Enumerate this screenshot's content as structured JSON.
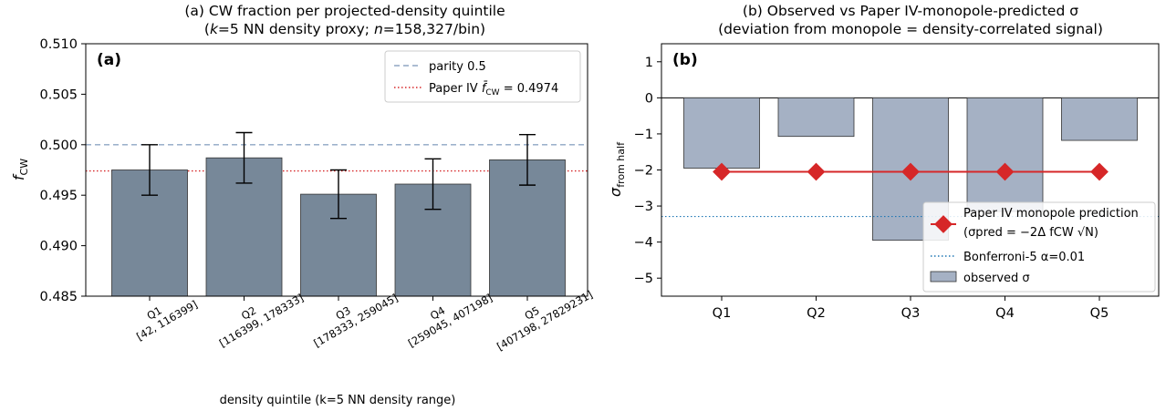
{
  "chart_data": [
    {
      "type": "bar",
      "panel_label": "(a)",
      "title_line1": "(a) CW fraction per projected-density quintile",
      "title_line2_parts": [
        "(",
        "k",
        "=5 NN density proxy; ",
        "n",
        "=158,327/bin)"
      ],
      "xlabel": "density quintile (k=5 NN density range)",
      "ylabel": "f",
      "ylabel_sub": "CW",
      "categories": [
        "Q1",
        "Q2",
        "Q3",
        "Q4",
        "Q5"
      ],
      "category_ranges": [
        "[42, 116399]",
        "[116399, 178333]",
        "[178333, 259045]",
        "[259045, 407198]",
        "[407198, 27829231]"
      ],
      "values": [
        0.4975,
        0.4987,
        0.4951,
        0.4961,
        0.4985
      ],
      "error": [
        0.0025,
        0.0025,
        0.0024,
        0.0025,
        0.0025
      ],
      "ylim": [
        0.485,
        0.51
      ],
      "yticks": [
        "0.485",
        "0.490",
        "0.495",
        "0.500",
        "0.505",
        "0.510"
      ],
      "ytick_values": [
        0.485,
        0.49,
        0.495,
        0.5,
        0.505,
        0.51
      ],
      "reference_lines": [
        {
          "name": "parity 0.5",
          "value": 0.5,
          "color": "#8fa6c4",
          "style": "dashed"
        },
        {
          "name": "Paper IV f̄CW = 0.4974",
          "label_main": "Paper IV ",
          "label_sym": "f̄",
          "label_sub": "CW",
          "label_tail": " = 0.4974",
          "value": 0.4974,
          "color": "#d62728",
          "style": "dotted"
        }
      ],
      "bar_color": "#778899",
      "legend_position": "upper right",
      "grid": false
    },
    {
      "type": "bar",
      "panel_label": "(b)",
      "title_line1": "(b) Observed vs Paper IV-monopole-predicted σ",
      "title_line2": "(deviation from monopole = density-correlated signal)",
      "ylabel": "σ",
      "ylabel_sub": "from half",
      "categories": [
        "Q1",
        "Q2",
        "Q3",
        "Q4",
        "Q5"
      ],
      "observed_sigma": [
        -1.95,
        -1.07,
        -3.95,
        -3.15,
        -1.18
      ],
      "predicted_sigma": [
        -2.05,
        -2.05,
        -2.05,
        -2.05,
        -2.05
      ],
      "bonferroni_threshold": -3.29,
      "ylim": [
        -5.5,
        1.5
      ],
      "yticks": [
        "1",
        "0",
        "−1",
        "−2",
        "−3",
        "−4",
        "−5"
      ],
      "ytick_values": [
        1,
        0,
        -1,
        -2,
        -3,
        -4,
        -5
      ],
      "legend": {
        "prediction_line1": "Paper IV monopole prediction",
        "prediction_line2": "(σpred = −2Δ fCW √N)",
        "bonferroni": "Bonferroni-5 α=0.01",
        "observed": "observed σ"
      },
      "colors": {
        "bar": "#a5b1c4",
        "prediction": "#d62728",
        "bonferroni": "#1f77b4"
      },
      "legend_position": "lower right",
      "grid": false
    }
  ]
}
